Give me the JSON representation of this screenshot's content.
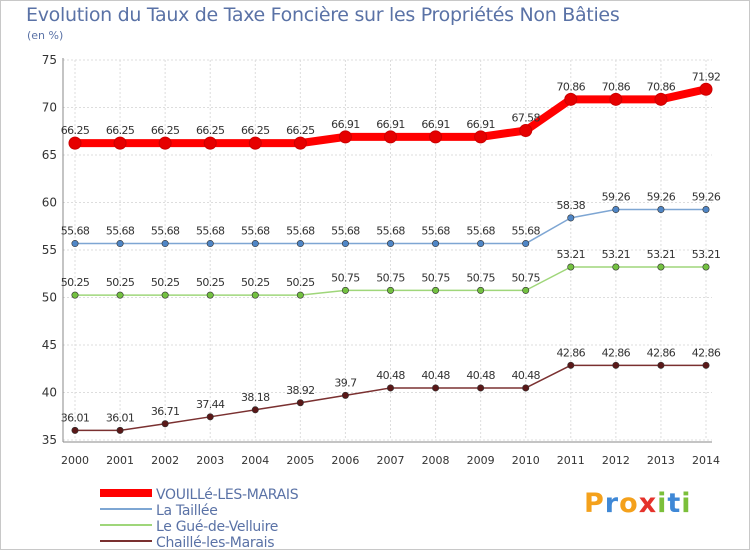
{
  "title": "Evolution du Taux de Taxe Foncière sur les Propriétés Non Bâties",
  "subtitle": "(en %)",
  "logo": {
    "text": "Proxiti",
    "letters": [
      "P",
      "r",
      "o",
      "x",
      "i",
      "t",
      "i"
    ],
    "colors": [
      "#f4a11c",
      "#3f88d6",
      "#f4a11c",
      "#e5322b",
      "#7bbf3a",
      "#3f88d6",
      "#7bbf3a"
    ]
  },
  "chart_data": {
    "type": "line",
    "title": "Evolution du Taux de Taxe Foncière sur les Propriétés Non Bâties",
    "ylabel": "(en %)",
    "xlabel": "",
    "x": [
      "2000",
      "2001",
      "2002",
      "2003",
      "2004",
      "2005",
      "2006",
      "2007",
      "2008",
      "2009",
      "2010",
      "2011",
      "2012",
      "2013",
      "2014"
    ],
    "ylim": [
      35,
      75
    ],
    "yticks": [
      35,
      40,
      45,
      50,
      55,
      60,
      65,
      70,
      75
    ],
    "grid": true,
    "legend": "bottom-left",
    "series": [
      {
        "name": "VOUILLé-LES-MARAIS",
        "color": "#ff0000",
        "pointColor": "#e60000",
        "width": 8,
        "values": [
          66.25,
          66.25,
          66.25,
          66.25,
          66.25,
          66.25,
          66.91,
          66.91,
          66.91,
          66.91,
          67.58,
          70.86,
          70.86,
          70.86,
          71.92
        ],
        "labels": [
          "66.25",
          "66.25",
          "66.25",
          "66.25",
          "66.25",
          "66.25",
          "66.91",
          "66.91",
          "66.91",
          "66.91",
          "67.58",
          "70.86",
          "70.86",
          "70.86",
          "71.92"
        ]
      },
      {
        "name": "La Taillée",
        "color": "#7ea6d3",
        "pointColor": "#4f86c6",
        "width": 1.5,
        "values": [
          55.68,
          55.68,
          55.68,
          55.68,
          55.68,
          55.68,
          55.68,
          55.68,
          55.68,
          55.68,
          55.68,
          58.38,
          59.26,
          59.26,
          59.26
        ],
        "labels": [
          "55.68",
          "55.68",
          "55.68",
          "55.68",
          "55.68",
          "55.68",
          "55.68",
          "55.68",
          "55.68",
          "55.68",
          "55.68",
          "58.38",
          "59.26",
          "59.26",
          "59.26"
        ]
      },
      {
        "name": "Le Gué-de-Velluire",
        "color": "#9fd67a",
        "pointColor": "#73c140",
        "width": 1.5,
        "values": [
          50.25,
          50.25,
          50.25,
          50.25,
          50.25,
          50.25,
          50.75,
          50.75,
          50.75,
          50.75,
          50.75,
          53.21,
          53.21,
          53.21,
          53.21
        ],
        "labels": [
          "50.25",
          "50.25",
          "50.25",
          "50.25",
          "50.25",
          "50.25",
          "50.75",
          "50.75",
          "50.75",
          "50.75",
          "50.75",
          "53.21",
          "53.21",
          "53.21",
          "53.21"
        ]
      },
      {
        "name": "Chaillé-les-Marais",
        "color": "#7a3030",
        "pointColor": "#5a1818",
        "width": 1.5,
        "values": [
          36.01,
          36.01,
          36.71,
          37.44,
          38.18,
          38.92,
          39.7,
          40.48,
          40.48,
          40.48,
          40.48,
          42.86,
          42.86,
          42.86,
          42.86
        ],
        "labels": [
          "36.01",
          "36.01",
          "36.71",
          "37.44",
          "38.18",
          "38.92",
          "39.7",
          "40.48",
          "40.48",
          "40.48",
          "40.48",
          "42.86",
          "42.86",
          "42.86",
          "42.86"
        ]
      }
    ]
  }
}
